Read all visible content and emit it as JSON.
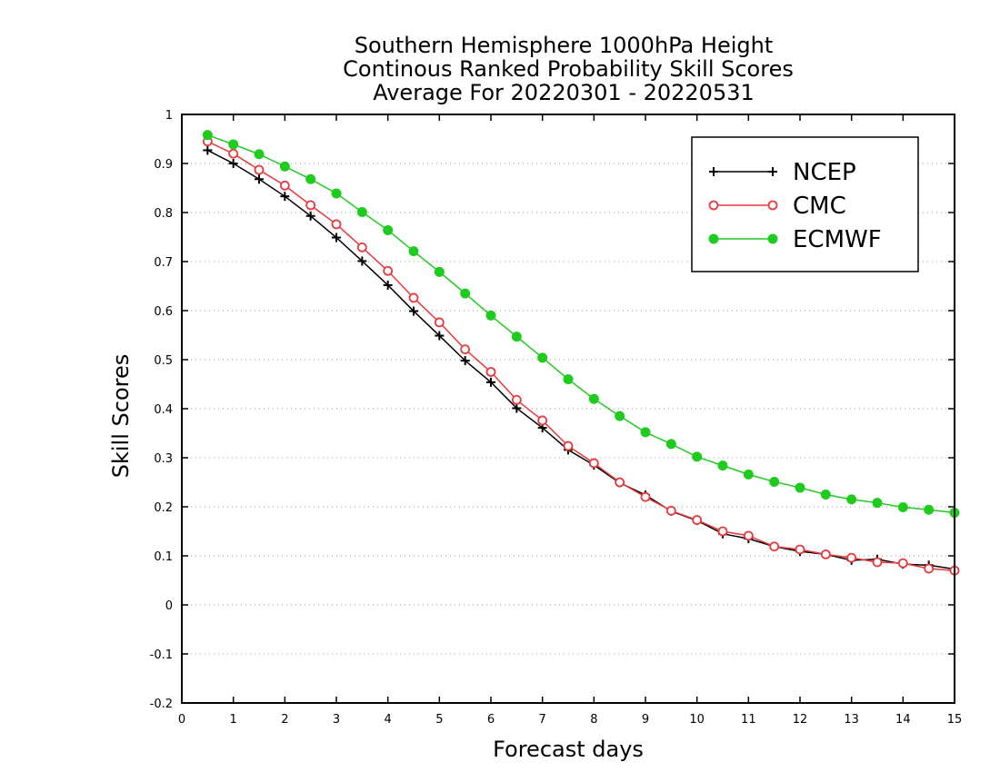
{
  "chart_data": {
    "type": "line",
    "title_lines": [
      "Southern Hemisphere 1000hPa Height",
      "Continous Ranked Probability Skill Scores",
      "Average For 20220301 - 20220531"
    ],
    "xlabel": "Forecast days",
    "ylabel": "Skill Scores",
    "xlim": [
      0,
      15
    ],
    "ylim": [
      -0.2,
      1
    ],
    "xticks": [
      0,
      1,
      2,
      3,
      4,
      5,
      6,
      7,
      8,
      9,
      10,
      11,
      12,
      13,
      14,
      15
    ],
    "xtick_labels": [
      "0",
      "1",
      "2",
      "3",
      "4",
      "5",
      "6",
      "7",
      "8",
      "9",
      "10",
      "11",
      "12",
      "13",
      "14",
      "15"
    ],
    "yticks": [
      -0.2,
      -0.1,
      0,
      0.1,
      0.2,
      0.3,
      0.4,
      0.5,
      0.6,
      0.7,
      0.8,
      0.9,
      1
    ],
    "ytick_labels": [
      "-0.2",
      "-0.1",
      "0",
      "0.1",
      "0.2",
      "0.3",
      "0.4",
      "0.5",
      "0.6",
      "0.7",
      "0.8",
      "0.9",
      "1"
    ],
    "grid": "horizontal dotted",
    "legend_position": "top-right",
    "x": [
      0.5,
      1,
      1.5,
      2,
      2.5,
      3,
      3.5,
      4,
      4.5,
      5,
      5.5,
      6,
      6.5,
      7,
      7.5,
      8,
      8.5,
      9,
      9.5,
      10,
      10.5,
      11,
      11.5,
      12,
      12.5,
      13,
      13.5,
      14,
      14.5,
      15
    ],
    "series": [
      {
        "name": "NCEP",
        "color": "#000000",
        "marker": "plus",
        "values": [
          0.927,
          0.9,
          0.868,
          0.833,
          0.793,
          0.749,
          0.701,
          0.652,
          0.599,
          0.549,
          0.498,
          0.454,
          0.401,
          0.361,
          0.316,
          0.285,
          0.249,
          0.224,
          0.191,
          0.172,
          0.145,
          0.135,
          0.119,
          0.109,
          0.103,
          0.091,
          0.093,
          0.083,
          0.081,
          0.073
        ]
      },
      {
        "name": "CMC",
        "color": "#e8393c",
        "marker": "open-circle",
        "values": [
          0.945,
          0.92,
          0.887,
          0.855,
          0.815,
          0.776,
          0.729,
          0.681,
          0.626,
          0.576,
          0.521,
          0.475,
          0.418,
          0.376,
          0.324,
          0.289,
          0.25,
          0.22,
          0.192,
          0.173,
          0.15,
          0.141,
          0.119,
          0.113,
          0.103,
          0.096,
          0.087,
          0.085,
          0.074,
          0.07
        ]
      },
      {
        "name": "ECMWF",
        "color": "#1ecb1e",
        "marker": "filled-circle",
        "values": [
          0.958,
          0.939,
          0.919,
          0.894,
          0.868,
          0.839,
          0.801,
          0.764,
          0.721,
          0.679,
          0.635,
          0.59,
          0.547,
          0.504,
          0.46,
          0.42,
          0.385,
          0.352,
          0.328,
          0.302,
          0.284,
          0.266,
          0.251,
          0.239,
          0.225,
          0.215,
          0.208,
          0.199,
          0.194,
          0.188
        ]
      }
    ]
  }
}
